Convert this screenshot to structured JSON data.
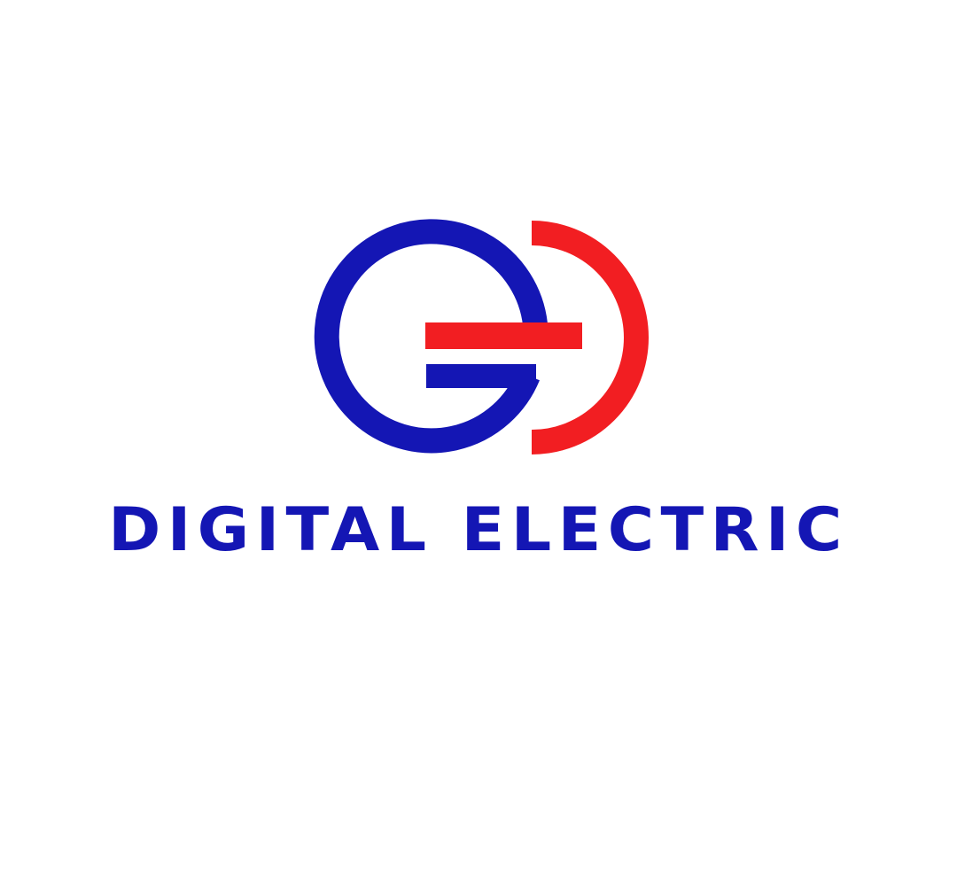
{
  "logo": {
    "brand_name": "DIGITAL ELECTRIC",
    "icon": "ge-monogram-icon",
    "colors": {
      "blue": "#1416B4",
      "red": "#F21E22",
      "background": "#FFFFFF"
    }
  }
}
